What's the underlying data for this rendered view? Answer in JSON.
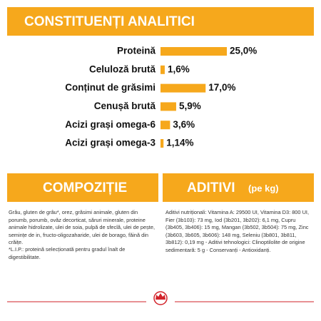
{
  "chart_data": {
    "type": "bar",
    "title": "CONSTITUENȚI ANALITICI",
    "categories": [
      "Proteină",
      "Celuloză brută",
      "Conținut de grăsimi",
      "Cenușă brută",
      "Acizi grași omega-6",
      "Acizi grași omega-3"
    ],
    "values": [
      25.0,
      1.6,
      17.0,
      5.9,
      3.6,
      1.14
    ],
    "value_labels": [
      "25,0%",
      "1,6%",
      "17,0%",
      "5,9%",
      "3,6%",
      "1,14%"
    ],
    "color": "#f6a81c"
  },
  "composition": {
    "title": "COMPOZIȚIE",
    "text": "Grâu, gluten de grâu*, orez, grăsimi animale, gluten din porumb, porumb, ovăz decorticat, săruri minerale, proteine animale hidrolizate, ulei de soia, pulpă de sfeclă, ulei de pește, semințe de in, fructo-oligozaharide, ulei de borago, făină din crăițe.",
    "note": "*L.I.P.: proteină selecționată pentru gradul înalt de digestibilitate."
  },
  "additives": {
    "title": "ADITIVI",
    "subtitle": "(pe kg)",
    "text": "Aditivi nutriționali: Vitamina A: 29500 UI, Vitamina D3: 800 UI, Fier (3b103): 73 mg, Iod (3b201, 3b202): 6,1 mg, Cupru (3b405, 3b406): 15 mg, Mangan (3b502, 3b504): 75 mg, Zinc (3b603, 3b605, 3b606): 148 mg, Seleniu (3b801, 3b811, 3b812): 0,19 mg - Aditivi tehnologici: Clinoptilolite de origine sedimentară: 5 g - Conservanți - Antioxidanți."
  }
}
